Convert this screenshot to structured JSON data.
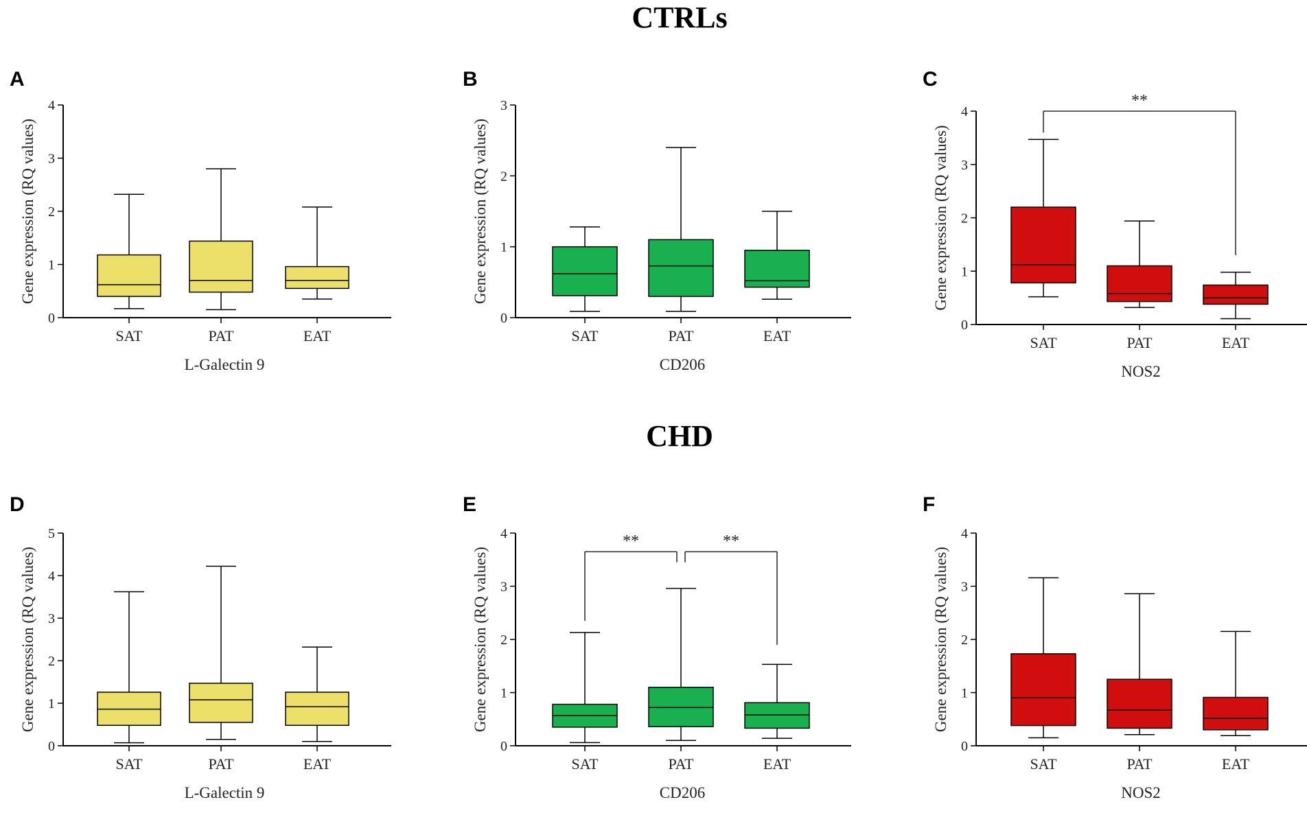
{
  "figure": {
    "section_titles": [
      "CTRLs",
      "CHD"
    ]
  },
  "colors": {
    "yellow": "#ECE06A",
    "green": "#19B150",
    "red": "#D10E0E",
    "axis": "#000000"
  },
  "chart_data": [
    {
      "panel": "A",
      "type": "box",
      "section": "CTRLs",
      "color": "yellow",
      "ylabel": "Gene expression  (RQ values)",
      "xlabel": "L-Galectin 9",
      "ylim": [
        0,
        4
      ],
      "yticks": [
        "0",
        "1",
        "2",
        "3",
        "4"
      ],
      "categories": [
        "SAT",
        "PAT",
        "EAT"
      ],
      "boxes": [
        {
          "min": 0.17,
          "q1": 0.4,
          "median": 0.62,
          "q3": 1.18,
          "max": 2.32
        },
        {
          "min": 0.15,
          "q1": 0.48,
          "median": 0.7,
          "q3": 1.44,
          "max": 2.8
        },
        {
          "min": 0.35,
          "q1": 0.55,
          "median": 0.7,
          "q3": 0.96,
          "max": 2.08
        }
      ],
      "significance": []
    },
    {
      "panel": "B",
      "type": "box",
      "section": "CTRLs",
      "color": "green",
      "ylabel": "Gene expression  (RQ values)",
      "xlabel": "CD206",
      "ylim": [
        0,
        3
      ],
      "yticks": [
        "0",
        "1",
        "2",
        "3"
      ],
      "categories": [
        "SAT",
        "PAT",
        "EAT"
      ],
      "boxes": [
        {
          "min": 0.09,
          "q1": 0.31,
          "median": 0.62,
          "q3": 1.0,
          "max": 1.28
        },
        {
          "min": 0.09,
          "q1": 0.3,
          "median": 0.73,
          "q3": 1.1,
          "max": 2.4
        },
        {
          "min": 0.26,
          "q1": 0.43,
          "median": 0.52,
          "q3": 0.95,
          "max": 1.5
        }
      ],
      "significance": []
    },
    {
      "panel": "C",
      "type": "box",
      "section": "CTRLs",
      "color": "red",
      "ylabel": "Gene expression  (RQ values)",
      "xlabel": "NOS2",
      "ylim": [
        0,
        4
      ],
      "yticks": [
        "0",
        "1",
        "2",
        "3",
        "4"
      ],
      "categories": [
        "SAT",
        "PAT",
        "EAT"
      ],
      "boxes": [
        {
          "min": 0.52,
          "q1": 0.78,
          "median": 1.12,
          "q3": 2.2,
          "max": 3.47
        },
        {
          "min": 0.32,
          "q1": 0.43,
          "median": 0.58,
          "q3": 1.1,
          "max": 1.94
        },
        {
          "min": 0.11,
          "q1": 0.38,
          "median": 0.5,
          "q3": 0.74,
          "max": 0.98
        }
      ],
      "significance": [
        {
          "from": 0,
          "to": 2,
          "label": "**",
          "level": 4.0,
          "drop_left": 3.6,
          "drop_right": 1.3
        }
      ]
    },
    {
      "panel": "D",
      "type": "box",
      "section": "CHD",
      "color": "yellow",
      "ylabel": "Gene expression  (RQ values)",
      "xlabel": "L-Galectin 9",
      "ylim": [
        0,
        5
      ],
      "yticks": [
        "0",
        "1",
        "2",
        "3",
        "4",
        "5"
      ],
      "categories": [
        "SAT",
        "PAT",
        "EAT"
      ],
      "boxes": [
        {
          "min": 0.07,
          "q1": 0.48,
          "median": 0.86,
          "q3": 1.26,
          "max": 3.62
        },
        {
          "min": 0.15,
          "q1": 0.55,
          "median": 1.08,
          "q3": 1.47,
          "max": 4.22
        },
        {
          "min": 0.1,
          "q1": 0.48,
          "median": 0.92,
          "q3": 1.26,
          "max": 2.32
        }
      ],
      "significance": []
    },
    {
      "panel": "E",
      "type": "box",
      "section": "CHD",
      "color": "green",
      "ylabel": "Gene expression  (RQ values)",
      "xlabel": "CD206",
      "ylim": [
        0,
        4
      ],
      "yticks": [
        "0",
        "1",
        "2",
        "3",
        "4"
      ],
      "categories": [
        "SAT",
        "PAT",
        "EAT"
      ],
      "boxes": [
        {
          "min": 0.06,
          "q1": 0.35,
          "median": 0.57,
          "q3": 0.78,
          "max": 2.13
        },
        {
          "min": 0.1,
          "q1": 0.36,
          "median": 0.72,
          "q3": 1.1,
          "max": 2.96
        },
        {
          "min": 0.14,
          "q1": 0.33,
          "median": 0.58,
          "q3": 0.81,
          "max": 1.53
        }
      ],
      "significance": [
        {
          "from": 0,
          "to": 1,
          "label": "**",
          "level": 3.65,
          "drop_left": 2.35,
          "drop_right": 3.45
        },
        {
          "from": 1,
          "to": 2,
          "label": "**",
          "level": 3.65,
          "drop_left": 3.45,
          "drop_right": 1.9
        }
      ]
    },
    {
      "panel": "F",
      "type": "box",
      "section": "CHD",
      "color": "red",
      "ylabel": "Gene expression  (RQ values)",
      "xlabel": "NOS2",
      "ylim": [
        0,
        4
      ],
      "yticks": [
        "0",
        "1",
        "2",
        "3",
        "4"
      ],
      "categories": [
        "SAT",
        "PAT",
        "EAT"
      ],
      "boxes": [
        {
          "min": 0.15,
          "q1": 0.38,
          "median": 0.9,
          "q3": 1.73,
          "max": 3.16
        },
        {
          "min": 0.21,
          "q1": 0.33,
          "median": 0.67,
          "q3": 1.25,
          "max": 2.86
        },
        {
          "min": 0.19,
          "q1": 0.3,
          "median": 0.52,
          "q3": 0.91,
          "max": 2.15
        }
      ],
      "significance": []
    }
  ]
}
